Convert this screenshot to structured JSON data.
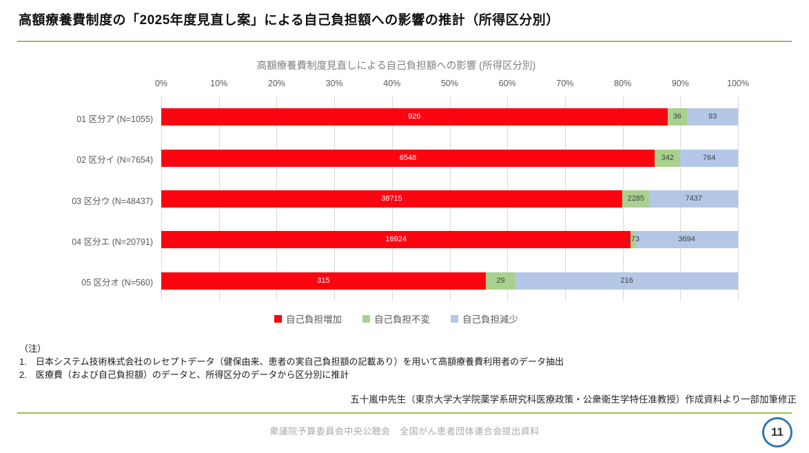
{
  "slide": {
    "title": "高額療養費制度の「2025年度見直し案」による自己負担額への影響の推計（所得区分別）",
    "notes": {
      "heading": "（注）",
      "items": [
        "1.　日本システム技術株式会社のレセプトデータ（健保由来、患者の実自己負担額の記載あり）を用いて高額療養費利用者のデータ抽出",
        "2.　医療費（および自己負担額）のデータと、所得区分のデータから区分別に推計"
      ]
    },
    "attribution": "五十嵐中先生（東京大学大学院薬学系研究科医療政策・公衆衛生学特任准教授）作成資料より一部加筆修正",
    "footer": "衆議院予算委員会中央公聴会　全国がん患者団体連合会提出資料",
    "page_number": "11",
    "accent_line_color": "#94C054",
    "page_badge_border_color": "#2E75B6"
  },
  "chart_data": {
    "type": "bar",
    "orientation": "horizontal",
    "stacked": true,
    "normalized_percent": true,
    "title": "高額療養費制度見直しによる自己負担額への影響 (所得区分別)",
    "categories": [
      "01 区分ア (N=1055)",
      "02 区分イ (N=7654)",
      "03 区分ウ (N=48437)",
      "04 区分エ (N=20791)",
      "05 区分オ (N=560)"
    ],
    "totals": [
      1055,
      7654,
      48437,
      20791,
      560
    ],
    "series": [
      {
        "name": "自己負担増加",
        "color": "#FB0511",
        "label_color": "#FFFFFF",
        "values": [
          926,
          6548,
          38715,
          16924,
          315
        ]
      },
      {
        "name": "自己負担不変",
        "color": "#A9D18E",
        "label_color": "#404040",
        "values": [
          36,
          342,
          2285,
          173,
          29
        ]
      },
      {
        "name": "自己負担減少",
        "color": "#B4C7E7",
        "label_color": "#404040",
        "values": [
          93,
          764,
          7437,
          3694,
          216
        ]
      }
    ],
    "x_ticks": [
      "0%",
      "10%",
      "20%",
      "30%",
      "40%",
      "50%",
      "60%",
      "70%",
      "80%",
      "90%",
      "100%"
    ],
    "xlim": [
      0,
      100
    ],
    "grid": true,
    "gridline_color": "#D9D9D9",
    "legend_position": "bottom"
  }
}
